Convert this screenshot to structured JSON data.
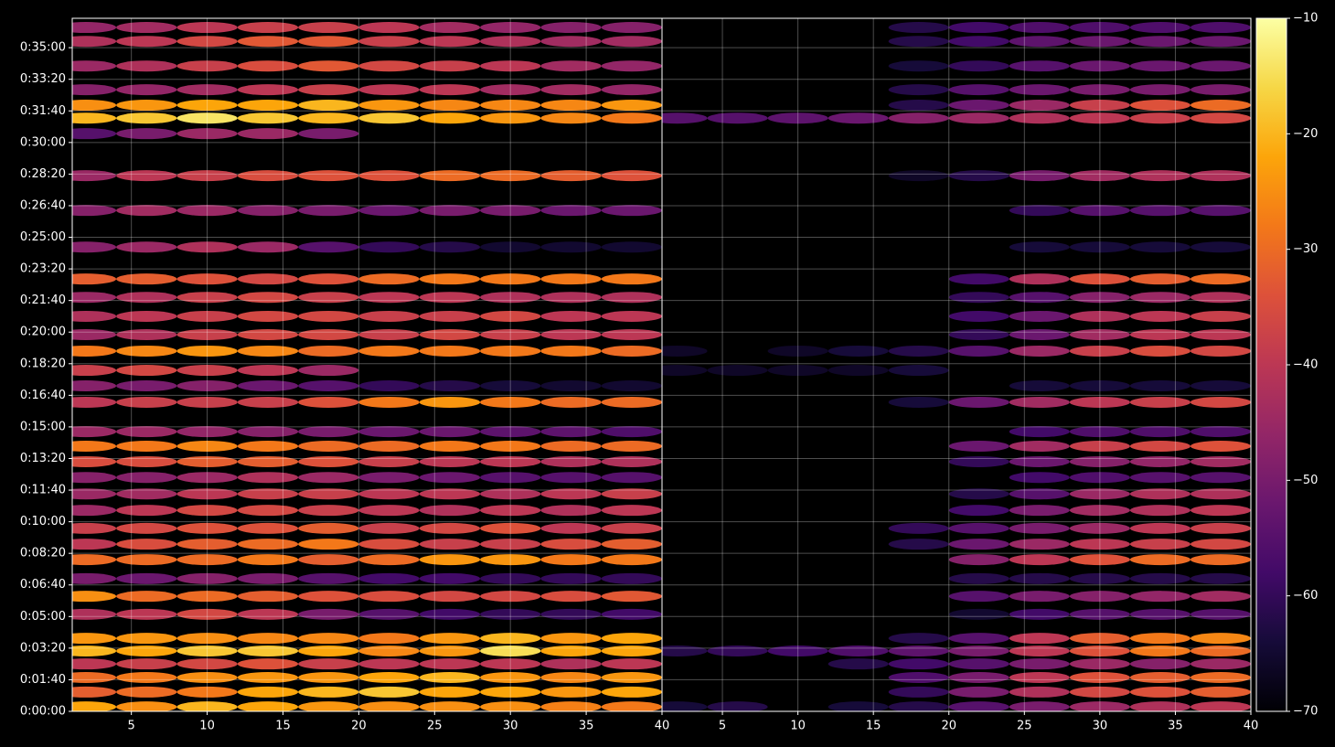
{
  "chart_data": [
    {
      "type": "heatmap",
      "colormap": "inferno",
      "clim": [
        -70,
        -10
      ],
      "x": [
        2,
        6,
        10,
        14,
        18,
        22,
        26,
        30,
        34,
        38
      ],
      "y": [
        14,
        61,
        107,
        150,
        191,
        231,
        307,
        364,
        420,
        480,
        529,
        579,
        636,
        688,
        740,
        790,
        839,
        885,
        978,
        1030,
        1079,
        1140,
        1192,
        1250,
        1310,
        1368,
        1469,
        1585,
        1695,
        1828,
        1877,
        1918,
        1967,
        2042,
        2120,
        2164
      ],
      "xlim": [
        1.1,
        40
      ],
      "xticks": [
        5,
        10,
        15,
        20,
        25,
        30,
        35,
        40
      ],
      "ylim": [
        0,
        2193
      ],
      "yticks": [
        {
          "value": 0,
          "label": "0:00:00"
        },
        {
          "value": 100,
          "label": "0:01:40"
        },
        {
          "value": 200,
          "label": "0:03:20"
        },
        {
          "value": 300,
          "label": "0:05:00"
        },
        {
          "value": 400,
          "label": "0:06:40"
        },
        {
          "value": 500,
          "label": "0:08:20"
        },
        {
          "value": 600,
          "label": "0:10:00"
        },
        {
          "value": 700,
          "label": "0:11:40"
        },
        {
          "value": 800,
          "label": "0:13:20"
        },
        {
          "value": 900,
          "label": "0:15:00"
        },
        {
          "value": 1000,
          "label": "0:16:40"
        },
        {
          "value": 1100,
          "label": "0:18:20"
        },
        {
          "value": 1200,
          "label": "0:20:00"
        },
        {
          "value": 1300,
          "label": "0:21:40"
        },
        {
          "value": 1400,
          "label": "0:23:20"
        },
        {
          "value": 1500,
          "label": "0:25:00"
        },
        {
          "value": 1600,
          "label": "0:26:40"
        },
        {
          "value": 1700,
          "label": "0:28:20"
        },
        {
          "value": 1800,
          "label": "0:30:00"
        },
        {
          "value": 1900,
          "label": "0:31:40"
        },
        {
          "value": 2000,
          "label": "0:33:20"
        },
        {
          "value": 2100,
          "label": "0:35:00"
        }
      ],
      "grid": true,
      "values": [
        [
          -22,
          -25,
          -20,
          -22,
          -24,
          -25,
          -25,
          -25,
          -27,
          -28
        ],
        [
          -32,
          -30,
          -28,
          -22,
          -20,
          -18,
          -22,
          -22,
          -24,
          -22
        ],
        [
          -30,
          -28,
          -25,
          -24,
          -24,
          -22,
          -20,
          -24,
          -26,
          -24
        ],
        [
          -40,
          -38,
          -36,
          -34,
          -38,
          -40,
          -40,
          -40,
          -42,
          -40
        ],
        [
          -20,
          -22,
          -18,
          -18,
          -22,
          -26,
          -24,
          -15,
          -22,
          -22
        ],
        [
          -24,
          -24,
          -25,
          -26,
          -26,
          -28,
          -24,
          -20,
          -24,
          -22
        ],
        [
          -42,
          -40,
          -36,
          -40,
          -50,
          -55,
          -58,
          -60,
          -60,
          -58
        ],
        [
          -25,
          -30,
          -30,
          -32,
          -34,
          -35,
          -36,
          -36,
          -35,
          -33
        ],
        [
          -50,
          -52,
          -48,
          -50,
          -55,
          -58,
          -58,
          -60,
          -60,
          -60
        ],
        [
          -30,
          -30,
          -30,
          -28,
          -32,
          -30,
          -24,
          -24,
          -28,
          -28
        ],
        [
          -40,
          -35,
          -32,
          -30,
          -28,
          -35,
          -38,
          -38,
          -35,
          -32
        ],
        [
          -38,
          -36,
          -34,
          -34,
          -32,
          -38,
          -36,
          -34,
          -40,
          -38
        ],
        [
          -45,
          -40,
          -36,
          -36,
          -38,
          -40,
          -42,
          -40,
          -42,
          -40
        ],
        [
          -45,
          -44,
          -40,
          -38,
          -38,
          -40,
          -40,
          -42,
          -40,
          -38
        ],
        [
          -48,
          -48,
          -45,
          -42,
          -45,
          -50,
          -52,
          -55,
          -55,
          -55
        ],
        [
          -35,
          -35,
          -32,
          -32,
          -34,
          -38,
          -40,
          -40,
          -42,
          -42
        ],
        [
          -28,
          -28,
          -26,
          -28,
          -30,
          -30,
          -28,
          -28,
          -30,
          -30
        ],
        [
          -45,
          -45,
          -46,
          -48,
          -50,
          -52,
          -52,
          -54,
          -54,
          -56
        ],
        [
          -40,
          -38,
          -38,
          -38,
          -34,
          -28,
          -24,
          -28,
          -30,
          -30
        ],
        [
          -48,
          -50,
          -48,
          -52,
          -55,
          -60,
          -62,
          -64,
          -65,
          -65
        ],
        [
          -38,
          -36,
          -38,
          -40,
          -45,
          null,
          null,
          null,
          null,
          null
        ],
        [
          -28,
          -26,
          -24,
          -26,
          -30,
          -28,
          -28,
          -28,
          -28,
          -30
        ],
        [
          -45,
          -42,
          -38,
          -36,
          -36,
          -38,
          -36,
          -38,
          -40,
          -40
        ],
        [
          -42,
          -40,
          -38,
          -36,
          -36,
          -38,
          -38,
          -36,
          -40,
          -40
        ],
        [
          -45,
          -42,
          -38,
          -36,
          -38,
          -40,
          -40,
          -42,
          -42,
          -42
        ],
        [
          -32,
          -32,
          -34,
          -36,
          -34,
          -30,
          -28,
          -28,
          -28,
          -28
        ],
        [
          -48,
          -45,
          -42,
          -45,
          -55,
          -60,
          -62,
          -65,
          -65,
          -65
        ],
        [
          -48,
          -44,
          -45,
          -48,
          -50,
          -52,
          -50,
          -50,
          -52,
          -52
        ],
        [
          -45,
          -40,
          -38,
          -35,
          -34,
          -34,
          -30,
          -30,
          -32,
          -34
        ],
        [
          -55,
          -50,
          -45,
          -45,
          -50,
          null,
          null,
          null,
          null,
          null
        ],
        [
          -20,
          -18,
          -14,
          -18,
          -20,
          -18,
          -22,
          -24,
          -26,
          -28
        ],
        [
          -25,
          -24,
          -22,
          -22,
          -20,
          -24,
          -26,
          -26,
          -26,
          -24
        ],
        [
          -48,
          -46,
          -44,
          -40,
          -38,
          -40,
          -40,
          -44,
          -44,
          -46
        ],
        [
          -45,
          -42,
          -38,
          -35,
          -33,
          -36,
          -38,
          -40,
          -44,
          -46
        ],
        [
          -42,
          -40,
          -36,
          -33,
          -33,
          -38,
          -40,
          -42,
          -44,
          -44
        ],
        [
          -46,
          -44,
          -40,
          -38,
          -38,
          -40,
          -44,
          -46,
          -48,
          -48
        ]
      ]
    },
    {
      "type": "heatmap",
      "colormap": "inferno",
      "clim": [
        -70,
        -10
      ],
      "x": [
        2,
        6,
        10,
        14,
        18,
        22,
        26,
        30,
        34,
        38
      ],
      "y": [
        14,
        61,
        107,
        150,
        191,
        231,
        307,
        364,
        420,
        480,
        529,
        579,
        636,
        688,
        740,
        790,
        839,
        885,
        978,
        1030,
        1079,
        1140,
        1192,
        1250,
        1310,
        1368,
        1469,
        1585,
        1695,
        1828,
        1877,
        1918,
        1967,
        2042,
        2120,
        2164
      ],
      "xlim": [
        1,
        40
      ],
      "xticks": [
        5,
        10,
        15,
        20,
        25,
        30,
        35,
        40
      ],
      "grid": true,
      "cticks": [
        {
          "value": -10,
          "label": "−10"
        },
        {
          "value": -20,
          "label": "−20"
        },
        {
          "value": -30,
          "label": "−30"
        },
        {
          "value": -40,
          "label": "−40"
        },
        {
          "value": -50,
          "label": "−50"
        },
        {
          "value": -60,
          "label": "−60"
        },
        {
          "value": -70,
          "label": "−70"
        }
      ],
      "values": [
        [
          -64,
          -62,
          null,
          -64,
          -62,
          -55,
          -50,
          -45,
          -42,
          -40
        ],
        [
          null,
          null,
          null,
          null,
          -60,
          -50,
          -42,
          -36,
          -34,
          -32
        ],
        [
          null,
          null,
          null,
          null,
          -56,
          -50,
          -40,
          -34,
          -32,
          -30
        ],
        [
          null,
          null,
          null,
          -62,
          -58,
          -55,
          -50,
          -45,
          -48,
          -45
        ],
        [
          -62,
          -60,
          -58,
          -56,
          -54,
          -50,
          -40,
          -34,
          -28,
          -30
        ],
        [
          null,
          null,
          null,
          null,
          -62,
          -55,
          -40,
          -32,
          -28,
          -26
        ],
        [
          null,
          null,
          null,
          null,
          null,
          -65,
          -58,
          -55,
          -55,
          -55
        ],
        [
          null,
          null,
          null,
          null,
          null,
          -55,
          -50,
          -48,
          -46,
          -44
        ],
        [
          null,
          null,
          null,
          null,
          null,
          -62,
          -62,
          -62,
          -62,
          -62
        ],
        [
          null,
          null,
          null,
          null,
          null,
          -48,
          -40,
          -34,
          -30,
          -30
        ],
        [
          null,
          null,
          null,
          null,
          -62,
          -52,
          -45,
          -40,
          -38,
          -36
        ],
        [
          null,
          null,
          null,
          null,
          -60,
          -55,
          -50,
          -45,
          -40,
          -38
        ],
        [
          null,
          null,
          null,
          null,
          null,
          -58,
          -50,
          -44,
          -42,
          -40
        ],
        [
          null,
          null,
          null,
          null,
          null,
          -62,
          -55,
          -45,
          -42,
          -42
        ],
        [
          null,
          null,
          null,
          null,
          null,
          null,
          -58,
          -56,
          -55,
          -55
        ],
        [
          null,
          null,
          null,
          null,
          null,
          -60,
          -52,
          -48,
          -46,
          -44
        ],
        [
          null,
          null,
          null,
          null,
          null,
          -52,
          -44,
          -38,
          -36,
          -34
        ],
        [
          null,
          null,
          null,
          null,
          null,
          null,
          -58,
          -56,
          -56,
          -56
        ],
        [
          null,
          null,
          null,
          null,
          -64,
          -52,
          -44,
          -40,
          -38,
          -36
        ],
        [
          null,
          null,
          null,
          null,
          null,
          null,
          -64,
          -64,
          -64,
          -64
        ],
        [
          -66,
          -66,
          -66,
          -66,
          -64,
          null,
          null,
          null,
          null,
          null
        ],
        [
          -66,
          null,
          -66,
          -64,
          -62,
          -55,
          -45,
          -38,
          -35,
          -36
        ],
        [
          null,
          null,
          null,
          null,
          null,
          -60,
          -52,
          -44,
          -40,
          -40
        ],
        [
          null,
          null,
          null,
          null,
          null,
          -58,
          -52,
          -42,
          -40,
          -38
        ],
        [
          null,
          null,
          null,
          null,
          null,
          -60,
          -55,
          -48,
          -45,
          -42
        ],
        [
          null,
          null,
          null,
          null,
          null,
          -58,
          -42,
          -34,
          -32,
          -30
        ],
        [
          null,
          null,
          null,
          null,
          null,
          null,
          -64,
          -64,
          -64,
          -64
        ],
        [
          null,
          null,
          null,
          null,
          null,
          null,
          -60,
          -55,
          -55,
          -55
        ],
        [
          null,
          null,
          null,
          null,
          -66,
          -62,
          -50,
          -44,
          -42,
          -42
        ],
        [
          null,
          null,
          null,
          null,
          null,
          null,
          null,
          null,
          null,
          null
        ],
        [
          -55,
          -55,
          -54,
          -52,
          -48,
          -45,
          -42,
          -40,
          -38,
          -36
        ],
        [
          null,
          null,
          null,
          null,
          -62,
          -52,
          -45,
          -38,
          -34,
          -30
        ],
        [
          null,
          null,
          null,
          null,
          -62,
          -55,
          -52,
          -50,
          -50,
          -50
        ],
        [
          null,
          null,
          null,
          null,
          -64,
          -60,
          -55,
          -52,
          -52,
          -52
        ],
        [
          null,
          null,
          null,
          null,
          -62,
          -58,
          -54,
          -52,
          -52,
          -52
        ],
        [
          null,
          null,
          null,
          null,
          -62,
          -58,
          -56,
          -56,
          -56,
          -56
        ]
      ]
    }
  ]
}
